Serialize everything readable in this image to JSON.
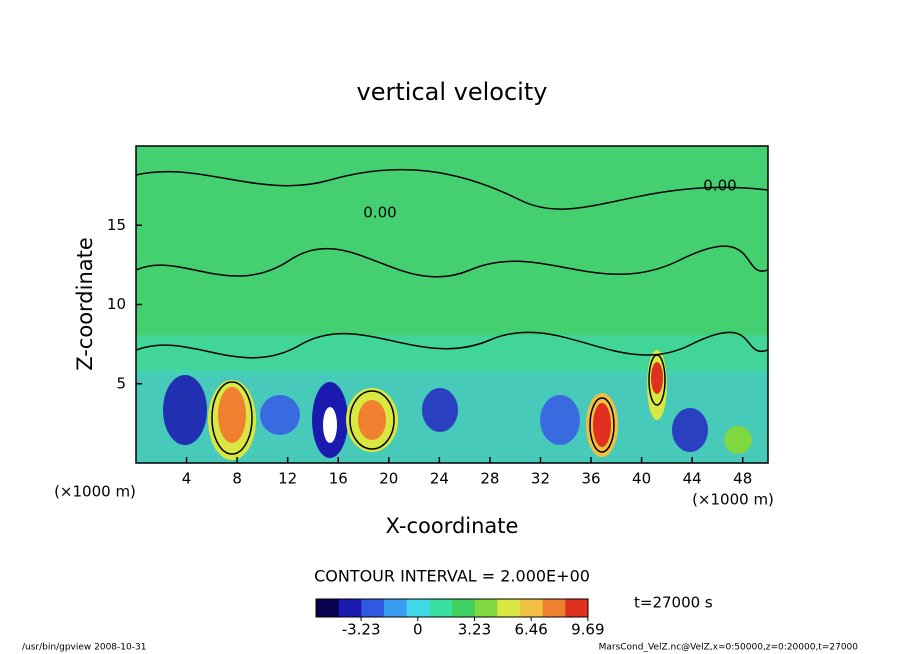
{
  "chart_data": {
    "type": "contour",
    "title": "vertical velocity",
    "xlabel": "X-coordinate",
    "ylabel": "Z-coordinate",
    "x_unit_label": "(×1000 m)",
    "y_unit_label": "(×1000 m)",
    "xlim": [
      0,
      50
    ],
    "xticks": [
      4,
      8,
      12,
      16,
      20,
      24,
      28,
      32,
      36,
      40,
      44,
      48
    ],
    "ylim": [
      0,
      20
    ],
    "yticks": [
      5,
      10,
      15
    ],
    "contour_labels": [
      {
        "value": 0,
        "label": "0.00"
      },
      {
        "value": 0,
        "label": "0.00"
      }
    ],
    "contour_interval_label": "CONTOUR INTERVAL = 2.000E+00",
    "time_label": "t=27000 s",
    "clim": [
      -5.8,
      9.7
    ],
    "cticks": [
      -3.23,
      0,
      3.23,
      6.46,
      9.69
    ],
    "colormap": [
      "#0a0050",
      "#1a1ab0",
      "#2f5ae0",
      "#3a9cf0",
      "#40d8e8",
      "#38e0a0",
      "#40d060",
      "#80d840",
      "#d8e840",
      "#f0c040",
      "#f08030",
      "#e03020"
    ],
    "footer_left": "/usr/bin/gpview   2008-10-31",
    "footer_right": "MarsCond_VelZ.nc@VelZ,x=0:50000,z=0:20000,t=27000"
  }
}
